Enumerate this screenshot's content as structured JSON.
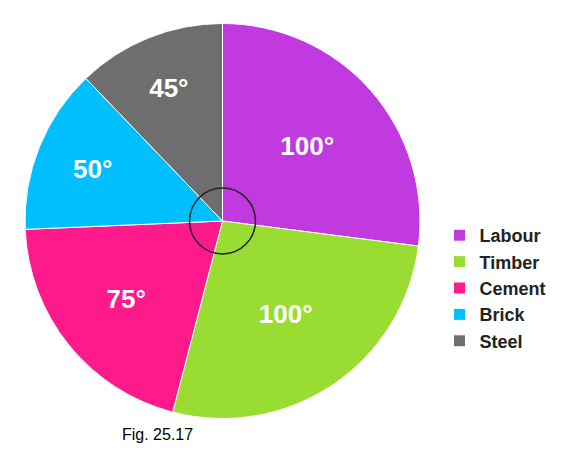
{
  "chart_data": {
    "type": "pie",
    "categories": [
      "Labour",
      "Timber",
      "Cement",
      "Brick",
      "Steel"
    ],
    "values": [
      100,
      100,
      75,
      50,
      45
    ],
    "value_labels": [
      "100°",
      "100°",
      "75°",
      "50°",
      "45°"
    ],
    "colors": [
      "#c03ae0",
      "#99dd33",
      "#ff1a8c",
      "#00bfff",
      "#6e6e6e"
    ],
    "data_labels": true,
    "legend": "right",
    "annotations": [
      "Fig. 25.17"
    ]
  }
}
